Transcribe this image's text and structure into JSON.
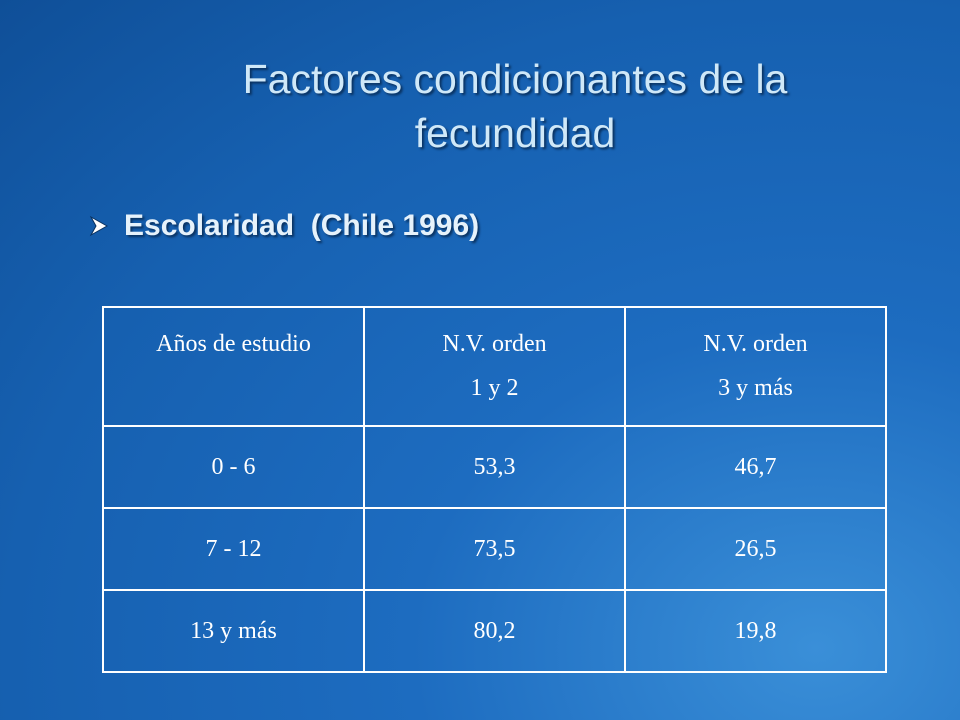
{
  "title": "Factores condicionantes de la fecundidad",
  "bullet": "Escolaridad  (Chile 1996)",
  "table": {
    "header": [
      [
        "Años de estudio"
      ],
      [
        "N.V. orden",
        "1 y 2"
      ],
      [
        "N.V. orden",
        "3 y más"
      ]
    ],
    "rows": [
      [
        "0 - 6",
        "53,3",
        "46,7"
      ],
      [
        "7 -  12",
        "73,5",
        "26,5"
      ],
      [
        "13 y más",
        "80,2",
        "19,8"
      ]
    ]
  }
}
